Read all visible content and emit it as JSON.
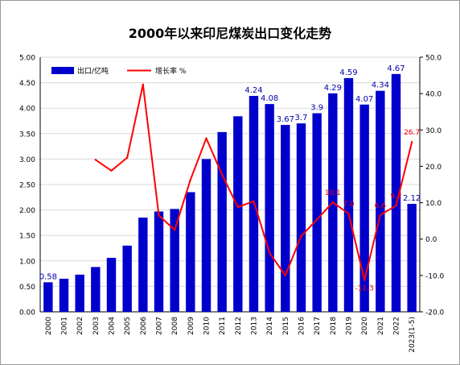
{
  "chart_data": {
    "type": "bar",
    "title": "2000年以来印尼煤炭出口变化走势",
    "categories": [
      "2000",
      "2001",
      "2002",
      "2003",
      "2004",
      "2005",
      "2006",
      "2007",
      "2008",
      "2009",
      "2010",
      "2011",
      "2012",
      "2013",
      "2014",
      "2015",
      "2016",
      "2017",
      "2018",
      "2019",
      "2020",
      "2021",
      "2022",
      "2023(1-5)"
    ],
    "ylim": [
      0,
      5
    ],
    "y_ticks": [
      "0.00",
      "0.50",
      "1.00",
      "1.50",
      "2.00",
      "2.50",
      "3.00",
      "3.50",
      "4.00",
      "4.50",
      "5.00"
    ],
    "y2lim": [
      -20,
      50
    ],
    "y2_ticks": [
      "-20.0",
      "-10.0",
      "0.0",
      "10.0",
      "20.0",
      "30.0",
      "40.0",
      "50.0"
    ],
    "legend_position": "top-left",
    "series": [
      {
        "name": "出口/亿吨",
        "type": "bar",
        "axis": "left",
        "color": "#0000cc",
        "values": [
          0.58,
          0.65,
          0.73,
          0.88,
          1.06,
          1.3,
          1.85,
          1.97,
          2.02,
          2.35,
          3.0,
          3.53,
          3.84,
          4.24,
          4.08,
          3.67,
          3.7,
          3.9,
          4.29,
          4.59,
          4.07,
          4.34,
          4.67,
          2.12
        ],
        "labels": [
          "0.58",
          "",
          "",
          "",
          "",
          "",
          "",
          "",
          "",
          "",
          "",
          "",
          "",
          "4.24",
          "4.08",
          "3.67",
          "3.7",
          "3.9",
          "4.29",
          "4.59",
          "4.07",
          "4.34",
          "4.67",
          "2.12"
        ]
      },
      {
        "name": "增长率 %",
        "type": "line",
        "axis": "right",
        "color": "#ff0000",
        "values": [
          null,
          null,
          null,
          21.8,
          18.8,
          22.4,
          42.5,
          6.5,
          2.5,
          16.3,
          27.7,
          17.7,
          8.8,
          10.4,
          -3.8,
          -10.0,
          0.8,
          5.4,
          10.1,
          7.0,
          -11.3,
          6.6,
          9.2,
          26.7
        ],
        "labels": [
          "",
          "",
          "",
          "",
          "",
          "",
          "",
          "",
          "",
          "",
          "",
          "",
          "",
          "",
          "",
          "",
          "",
          "",
          "10.1",
          "7.0",
          "-11.3",
          "6.6",
          "9.2",
          "26.7"
        ]
      }
    ]
  }
}
